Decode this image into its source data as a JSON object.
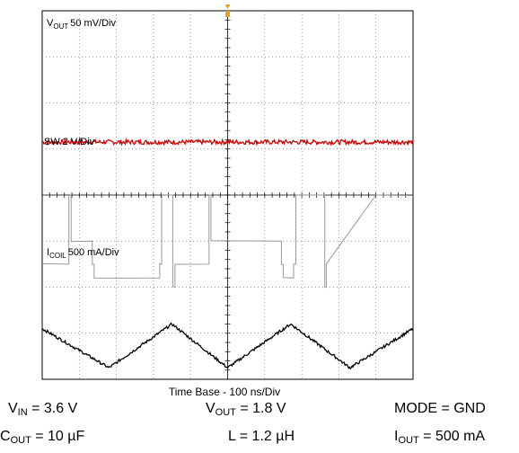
{
  "chart_data": {
    "type": "line",
    "title": "",
    "time_base": "Time Base - 100 ns/Div",
    "x_divisions": 10,
    "y_divisions": 8,
    "grid": true,
    "channels": [
      {
        "name_main": "V",
        "name_sub": "OUT",
        "scale": "50 mV/Div",
        "color": "#cc0000",
        "waveform": "flat-with-noise",
        "level_div": 5.15,
        "noise_div": 0.05,
        "x_div": [
          0,
          10
        ],
        "y_div": [
          5.15,
          5.15
        ]
      },
      {
        "name_main": "SW",
        "name_sub": "",
        "scale": "2 V/Div",
        "color": "#999999",
        "waveform": "square",
        "high_level_div": 4.0,
        "low_level_div": 2.5,
        "x_div": [
          0.0,
          0.02,
          0.72,
          0.72,
          0.78,
          0.78,
          1.35,
          1.35,
          1.4,
          1.4,
          3.17,
          3.17,
          3.22,
          3.22,
          3.52,
          3.52,
          3.58,
          3.58,
          4.5,
          4.5,
          4.55,
          4.55,
          6.45,
          6.45,
          6.5,
          6.5,
          6.78,
          6.78,
          6.84,
          6.84,
          7.62,
          7.62,
          7.66,
          7.66,
          9.0,
          10.0
        ],
        "y_div": [
          2.5,
          2.5,
          2.5,
          4.0,
          4.0,
          3.0,
          3.0,
          2.5,
          2.5,
          2.2,
          2.2,
          2.5,
          2.5,
          4.0,
          4.0,
          2.0,
          2.0,
          2.5,
          2.5,
          4.0,
          4.0,
          3.0,
          3.0,
          2.5,
          2.5,
          2.2,
          2.2,
          2.5,
          2.5,
          4.0,
          4.0,
          2.0,
          2.0,
          2.5,
          4.0,
          4.0
        ]
      },
      {
        "name_main": "I",
        "name_sub": "COIL",
        "scale": "500 mA/Div",
        "color": "#000000",
        "waveform": "triangle",
        "x_div": [
          0.0,
          1.8,
          3.5,
          5.0,
          6.7,
          8.3,
          10.0
        ],
        "y_div": [
          1.1,
          0.25,
          1.2,
          0.25,
          1.2,
          0.25,
          1.1
        ]
      }
    ],
    "trigger_marker_div": 5.0
  },
  "conditions": {
    "vin_main": "V",
    "vin_sub": "IN",
    "vin_value": " = 3.6 V",
    "vout_main": "V",
    "vout_sub": "OUT",
    "vout_value": " = 1.8 V",
    "mode": "MODE = GND",
    "cout_main": "C",
    "cout_sub": "OUT",
    "cout_value": " = 10 µF",
    "inductor": "L = 1.2 µH",
    "iout_main": "I",
    "iout_sub": "OUT",
    "iout_value": " = 500 mA"
  }
}
